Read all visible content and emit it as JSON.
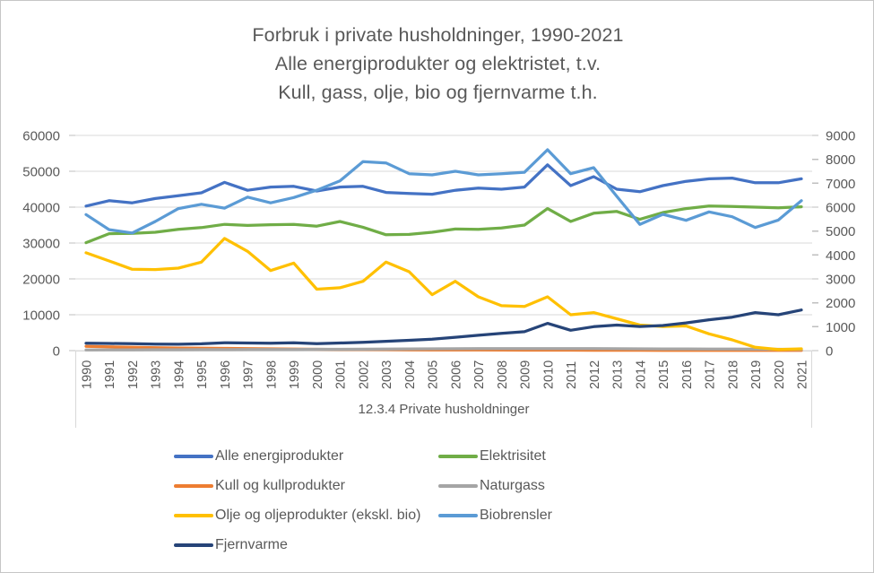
{
  "title": {
    "line1": "Forbruk i private husholdninger, 1990-2021",
    "line2": "Alle energiprodukter og elektristet, t.v.",
    "line3": "Kull, gass, olje, bio og fjernvarme t.h."
  },
  "axis_title": "12.3.4 Private husholdninger",
  "colors": {
    "text": "#595959",
    "gridline": "#d9d9d9",
    "tick": "#bfbfbf",
    "axis_frame": "#d9d9d9"
  },
  "chart_data": {
    "type": "line",
    "title": "Forbruk i private husholdninger, 1990-2021",
    "subtitle1": "Alle energiprodukter og elektristet, t.v.",
    "subtitle2": "Kull, gass, olje, bio og fjernvarme t.h.",
    "xlabel": "12.3.4 Private husholdninger",
    "grid": true,
    "legend_position": "bottom",
    "categories": [
      "1990",
      "1991",
      "1992",
      "1993",
      "1994",
      "1995",
      "1996",
      "1997",
      "1998",
      "1999",
      "2000",
      "2001",
      "2002",
      "2003",
      "2004",
      "2005",
      "2006",
      "2007",
      "2008",
      "2009",
      "2010",
      "2011",
      "2012",
      "2013",
      "2014",
      "2015",
      "2016",
      "2017",
      "2018",
      "2019",
      "2020",
      "2021"
    ],
    "axes": {
      "left": {
        "min": 0,
        "max": 60000,
        "step": 10000,
        "ticks": [
          "0",
          "10000",
          "20000",
          "30000",
          "40000",
          "50000",
          "60000"
        ]
      },
      "right": {
        "min": 0,
        "max": 9000,
        "step": 1000,
        "ticks": [
          "0",
          "1000",
          "2000",
          "3000",
          "4000",
          "5000",
          "6000",
          "7000",
          "8000",
          "9000"
        ]
      }
    },
    "series": [
      {
        "name": "Alle energiprodukter",
        "axis": "left",
        "color": "#4472c4",
        "values": [
          40300,
          41800,
          41200,
          42400,
          43200,
          44000,
          46900,
          44700,
          45600,
          45800,
          44500,
          45600,
          45800,
          44100,
          43800,
          43600,
          44700,
          45300,
          45000,
          45600,
          51800,
          46000,
          48500,
          45000,
          44300,
          46000,
          47200,
          47900,
          48100,
          46800,
          46800,
          47900
        ]
      },
      {
        "name": "Elektrisitet",
        "axis": "left",
        "color": "#70ad47",
        "values": [
          30100,
          32600,
          32700,
          33000,
          33800,
          34300,
          35200,
          34900,
          35100,
          35200,
          34700,
          36000,
          34400,
          32300,
          32400,
          33000,
          33900,
          33800,
          34200,
          35000,
          39600,
          36000,
          38300,
          38800,
          36600,
          38500,
          39600,
          40300,
          40200,
          40000,
          39800,
          40100
        ]
      },
      {
        "name": "Kull og kullprodukter",
        "axis": "right",
        "color": "#ed7d31",
        "values": [
          180,
          160,
          140,
          120,
          110,
          100,
          95,
          85,
          75,
          65,
          55,
          50,
          45,
          40,
          35,
          30,
          28,
          25,
          22,
          20,
          20,
          18,
          16,
          15,
          14,
          13,
          12,
          11,
          10,
          10,
          9,
          9
        ]
      },
      {
        "name": "Naturgass",
        "axis": "right",
        "color": "#a5a5a5",
        "values": [
          30,
          32,
          34,
          36,
          38,
          40,
          42,
          45,
          48,
          50,
          55,
          58,
          60,
          65,
          70,
          75,
          80,
          82,
          84,
          85,
          88,
          85,
          82,
          80,
          75,
          72,
          70,
          68,
          65,
          60,
          55,
          52
        ]
      },
      {
        "name": "Olje og oljeprodukter (ekskl. bio)",
        "axis": "right",
        "color": "#ffc000",
        "values": [
          4090,
          3750,
          3400,
          3390,
          3450,
          3700,
          4690,
          4150,
          3350,
          3660,
          2570,
          2630,
          2900,
          3700,
          3300,
          2340,
          2900,
          2250,
          1880,
          1850,
          2250,
          1500,
          1590,
          1330,
          1070,
          1010,
          1030,
          700,
          450,
          140,
          45,
          75
        ]
      },
      {
        "name": "Biobrensler",
        "axis": "right",
        "color": "#5b9bd5",
        "values": [
          5690,
          5060,
          4920,
          5400,
          5940,
          6120,
          5960,
          6420,
          6180,
          6400,
          6710,
          7100,
          7900,
          7850,
          7400,
          7350,
          7500,
          7350,
          7400,
          7460,
          8400,
          7400,
          7650,
          6450,
          5280,
          5700,
          5450,
          5800,
          5600,
          5150,
          5460,
          6270
        ]
      },
      {
        "name": "Fjernvarme",
        "axis": "right",
        "color": "#264478",
        "values": [
          310,
          300,
          290,
          270,
          265,
          285,
          330,
          320,
          310,
          330,
          290,
          320,
          350,
          390,
          430,
          480,
          560,
          640,
          720,
          790,
          1140,
          850,
          1000,
          1070,
          1010,
          1050,
          1160,
          1290,
          1400,
          1590,
          1500,
          1700
        ]
      }
    ]
  }
}
